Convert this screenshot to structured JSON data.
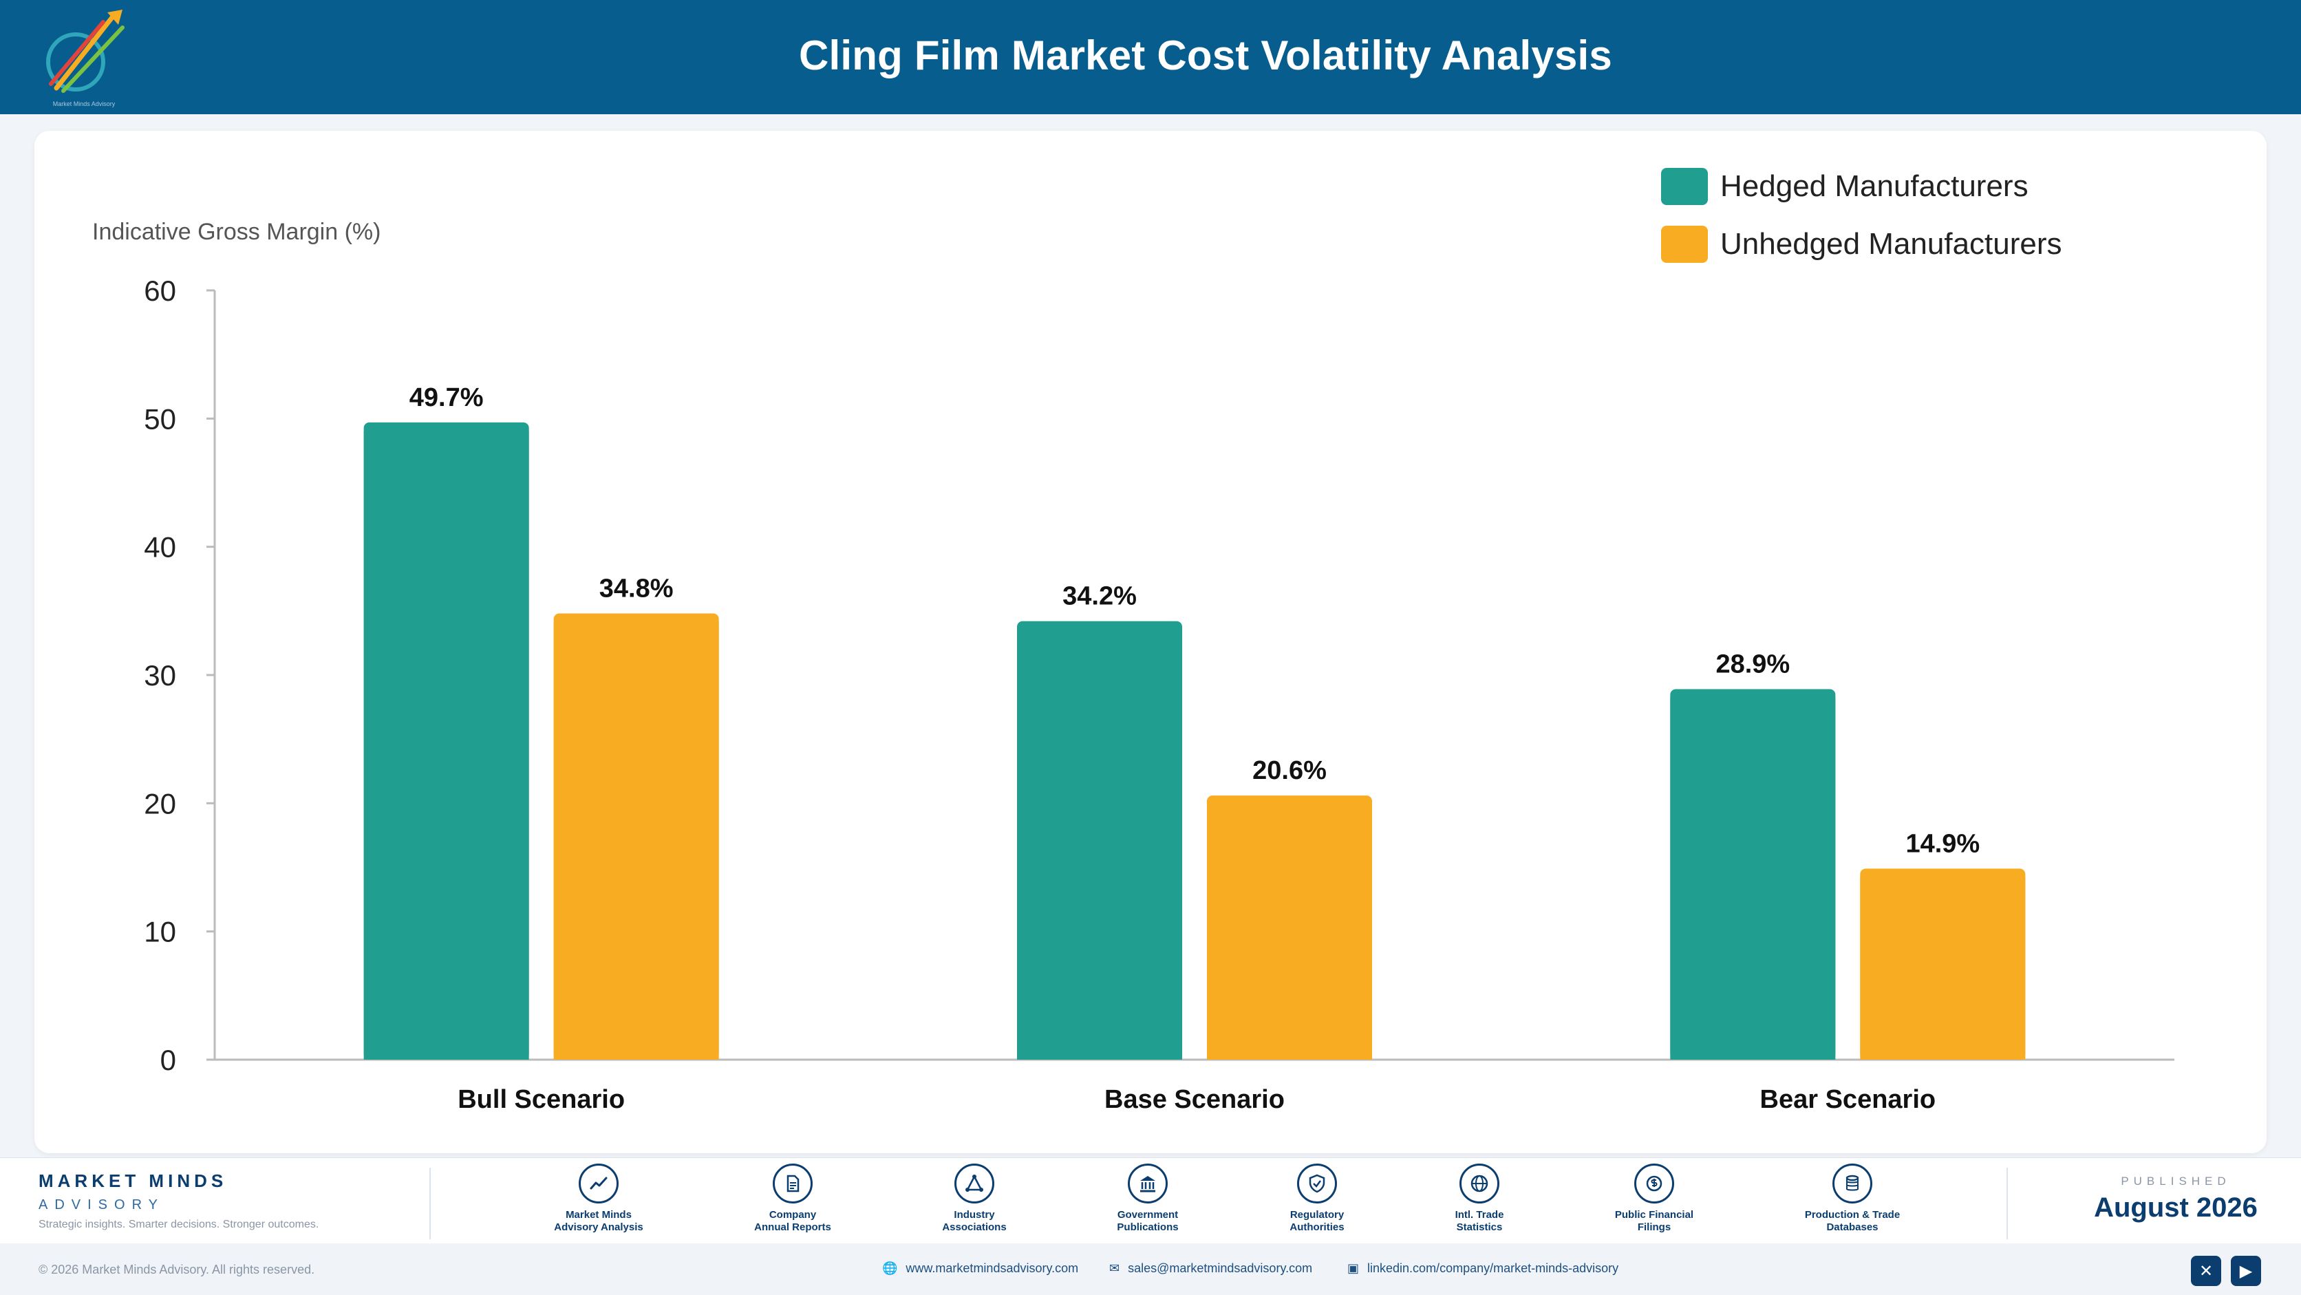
{
  "header": {
    "title": "Cling Film Market Cost Volatility Analysis",
    "logo_text": "Market Minds Advisory"
  },
  "colors": {
    "header_bg": "#075e8e",
    "hedged": "#209e8f",
    "unhedged": "#f7ac22",
    "brand": "#0b3d6e"
  },
  "chart_data": {
    "type": "bar",
    "title": "Cling Film Market Cost Volatility Analysis",
    "xlabel": "",
    "ylabel": "Indicative Gross Margin (%)",
    "ylim": [
      0,
      60
    ],
    "yticks": [
      0,
      10,
      20,
      30,
      40,
      50,
      60
    ],
    "categories": [
      "Bull Scenario",
      "Base Scenario",
      "Bear Scenario"
    ],
    "series": [
      {
        "name": "Hedged Manufacturers",
        "values": [
          49.7,
          34.2,
          28.9
        ],
        "labels": [
          "49.7%",
          "34.2%",
          "28.9%"
        ],
        "color": "#209e8f"
      },
      {
        "name": "Unhedged Manufacturers",
        "values": [
          34.8,
          20.6,
          14.9
        ],
        "labels": [
          "34.8%",
          "20.6%",
          "14.9%"
        ],
        "color": "#f7ac22"
      }
    ],
    "legend": "top-right",
    "grid": false
  },
  "footer": {
    "brand_name": "MARKET MINDS",
    "brand_sub": "ADVISORY",
    "tagline": "Strategic insights. Smarter decisions. Stronger outcomes.",
    "sources": [
      {
        "icon": "trend-icon",
        "line1": "Market Minds",
        "line2": "Advisory Analysis"
      },
      {
        "icon": "document-icon",
        "line1": "Company",
        "line2": "Annual Reports"
      },
      {
        "icon": "network-icon",
        "line1": "Industry",
        "line2": "Associations"
      },
      {
        "icon": "government-icon",
        "line1": "Government",
        "line2": "Publications"
      },
      {
        "icon": "shield-icon",
        "line1": "Regulatory",
        "line2": "Authorities"
      },
      {
        "icon": "globe-icon",
        "line1": "Intl. Trade",
        "line2": "Statistics"
      },
      {
        "icon": "coin-icon",
        "line1": "Public Financial",
        "line2": "Filings"
      },
      {
        "icon": "database-icon",
        "line1": "Production & Trade",
        "line2": "Databases"
      }
    ],
    "published_label": "PUBLISHED",
    "published_date": "August 2026",
    "copyright": "© 2026 Market Minds Advisory. All rights reserved.",
    "website": "www.marketmindsadvisory.com",
    "email": "sales@marketmindsadvisory.com",
    "linkedin": "linkedin.com/company/market-minds-advisory",
    "social": [
      {
        "icon": "x-icon"
      },
      {
        "icon": "youtube-icon"
      }
    ]
  }
}
